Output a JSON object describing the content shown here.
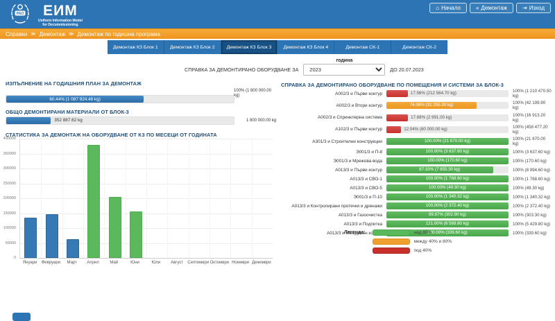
{
  "colors": {
    "header_blue": "#2d74b4",
    "breadcrumb_orange": "#f09c2c",
    "tab_active_blue": "#175083",
    "bar_blue": "#2e75b6",
    "status_green": "#5cb85c",
    "status_orange": "#f0a030",
    "status_red": "#c9302c"
  },
  "header": {
    "brand": "ЕИМ",
    "subtitle_line1": "Uniform Information Model",
    "subtitle_line2": "for Decommissioning",
    "logo_text": "РАО",
    "nav": [
      {
        "icon": "home-icon",
        "glyph": "⌂",
        "label": "Начало"
      },
      {
        "icon": "back-icon",
        "glyph": "«",
        "label": "Демонтаж"
      },
      {
        "icon": "signout-icon",
        "glyph": "⇥",
        "label": "Изход"
      }
    ]
  },
  "breadcrumb": {
    "separator": "≫",
    "items": [
      "Справки",
      "Демонтаж",
      "Демонтаж по годишна програма"
    ]
  },
  "tabs": [
    {
      "label": "Демонтаж КЗ Блок 1",
      "active": false
    },
    {
      "label": "Демонтаж КЗ Блок 2",
      "active": false
    },
    {
      "label": "Демонтаж КЗ Блок 3",
      "active": true
    },
    {
      "label": "Демонтаж КЗ Блок 4",
      "active": false
    },
    {
      "label": "Демонтаж СК-1",
      "active": false
    },
    {
      "label": "Демонтаж СК-2",
      "active": false
    }
  ],
  "filter": {
    "year_label": "година",
    "prefix": "СПРАВКА ЗА ДЕМОНТИРАНО ОБОРУДВАНЕ ЗА",
    "year_value": "2023",
    "until": "ДО 20.07.2023"
  },
  "annual_plan": {
    "title": "ИЗПЪЛНЕНИЕ НА ГОДИШНИЯ ПЛАН ЗА ДЕМОНТАЖ",
    "bar_text": "60.44%  (1 087 924.48 kg)",
    "fill_percent": 60.44,
    "total_text": "100%  (1 800 000.00 kg)"
  },
  "total_materials": {
    "title": "ОБЩО ДЕМОНТИРАНИ МАТЕРИАЛИ ОТ БЛОК-3",
    "bar_text": "352 887.62 kg",
    "fill_percent": 19.6,
    "total_text": "1 800 000.00 kg"
  },
  "chart_data": {
    "type": "bar",
    "title": "СТАТИСТИКА ЗА ДЕМОНТАЖ НА ОБОРУДВАНЕ ОТ КЗ ПО МЕСЕЦИ ОТ ГОДИНАТА",
    "categories": [
      "Януари",
      "Февруари",
      "Март",
      "Април",
      "Май",
      "Юни",
      "Юли",
      "Август",
      "Септември",
      "Октомври",
      "Ноември",
      "Декември"
    ],
    "values": [
      135000,
      146000,
      62000,
      380000,
      205000,
      157000,
      0,
      0,
      0,
      0,
      0,
      0
    ],
    "bar_colors": [
      "blue",
      "blue",
      "blue",
      "green",
      "green",
      "green",
      "green",
      "green",
      "green",
      "green",
      "green",
      "green"
    ],
    "xlabel": "",
    "ylabel": "",
    "ylim": [
      0,
      400000
    ],
    "ytick_step": 50000,
    "grid": true,
    "legend_position": "none"
  },
  "rooms_report": {
    "title": "СПРАВКА ЗА ДЕМОНТИРАНО ОБОРУДВАНЕ ПО ПОМЕЩЕНИЯ И СИСТЕМИ ЗА БЛОК-3",
    "rows": [
      {
        "label": "А002/3 и Първи контур",
        "status": "red",
        "percent": 17.56,
        "bar_text": "17.56%  (212 564.70 kg)",
        "total_text": "100%  (1 210 470.50 kg)"
      },
      {
        "label": "А002/3 и Втори контур",
        "status": "orange",
        "percent": 74.06,
        "bar_text": "74.06%  (31 255.30 kg)",
        "total_text": "100%  (42 199.90 kg)"
      },
      {
        "label": "А002/3 и Спринклерна система",
        "status": "red",
        "percent": 17.68,
        "bar_text": "17.68%  (2 991.00 kg)",
        "total_text": "100%  (16 913.20 kg)"
      },
      {
        "label": "А102/3 и Първи контур",
        "status": "red",
        "percent": 12.04,
        "bar_text": "12.04%  (60 000.00 kg)",
        "total_text": "100%  (458 477.20 kg)"
      },
      {
        "label": "А301/3 и Строителни конструкции",
        "status": "green",
        "percent": 100,
        "bar_text": "100.00%  (21 670.00 kg)",
        "total_text": "100%  (21 670.00 kg)"
      },
      {
        "label": "Э001/3 и П-8",
        "status": "green",
        "percent": 100,
        "bar_text": "100.00%  (3 637.60 kg)",
        "total_text": "100%  (3 637.60 kg)"
      },
      {
        "label": "Э001/3 и Мрежова вода",
        "status": "green",
        "percent": 100,
        "bar_text": "100.00%  (170.60 kg)",
        "total_text": "100%  (170.60 kg)"
      },
      {
        "label": "А013/3 и Първи контур",
        "status": "green",
        "percent": 87.33,
        "bar_text": "87.33%  (7 855.30 kg)",
        "total_text": "100%  (8 994.60 kg)"
      },
      {
        "label": "А013/3 и СВО-1",
        "status": "green",
        "percent": 100,
        "bar_text": "100.00%  (1 768.60 kg)",
        "total_text": "100%  (1 768.60 kg)"
      },
      {
        "label": "А013/3 и СВО-5",
        "status": "green",
        "percent": 100,
        "bar_text": "100.00%  (49.30 kg)",
        "total_text": "100%  (49.30 kg)"
      },
      {
        "label": "Э001/3 и П-10",
        "status": "green",
        "percent": 100,
        "bar_text": "100.00%  (1 340.32 kg)",
        "total_text": "100%  (1 340.32 kg)"
      },
      {
        "label": "А013/3 и Контролирани протечки и дренажи",
        "status": "green",
        "percent": 100,
        "bar_text": "100.00%  (2 372.40 kg)",
        "total_text": "100%  (2 372.40 kg)"
      },
      {
        "label": "А013/3 и Газоочистка",
        "status": "green",
        "percent": 99.87,
        "bar_text": "99.87%  (302.90 kg)",
        "total_text": "100%  (303.30 kg)"
      },
      {
        "label": "А013/3 и Подпитка",
        "status": "green",
        "percent": 100,
        "bar_text": "121.00%  (6 569.80 kg)",
        "total_text": "100%  (5 429.80 kg)"
      },
      {
        "label": "А013/3 и Междинен контур",
        "status": "green",
        "percent": 100,
        "bar_text": "100.00%  (339.60 kg)",
        "total_text": "100%  (339.60 kg)"
      }
    ],
    "legend": {
      "title": "Легенда:",
      "items": [
        {
          "status": "green",
          "label": "над 80%"
        },
        {
          "status": "orange",
          "label": "между 40% и 80%"
        },
        {
          "status": "red",
          "label": "под 40%"
        }
      ]
    }
  }
}
